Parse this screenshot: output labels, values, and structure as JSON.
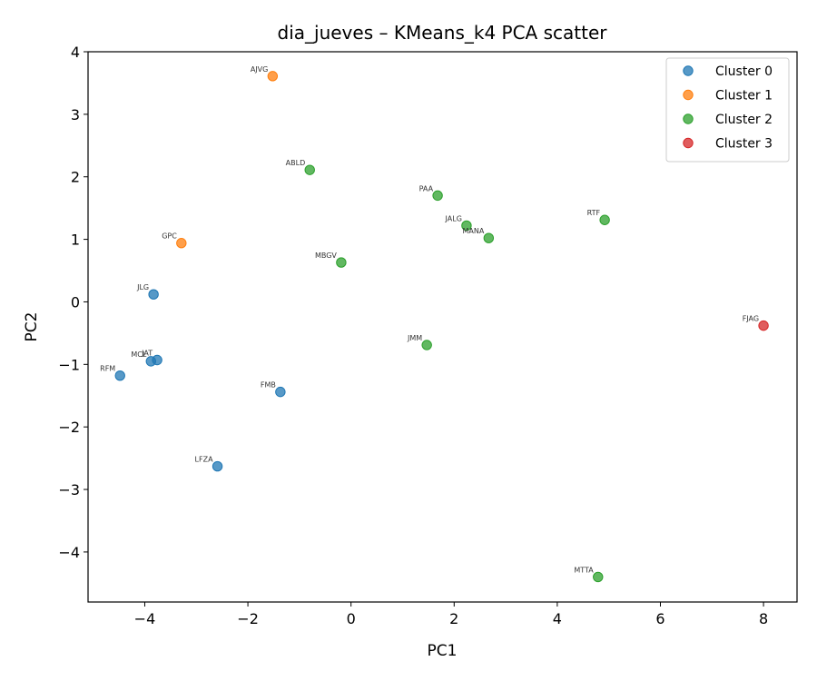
{
  "chart_data": {
    "type": "scatter",
    "title": "dia_jueves – KMeans_k4 PCA scatter",
    "xlabel": "PC1",
    "ylabel": "PC2",
    "xlim": [
      -5.1,
      8.65
    ],
    "ylim": [
      -4.8,
      4.0
    ],
    "xticks": [
      -4,
      -2,
      0,
      2,
      4,
      6,
      8
    ],
    "yticks": [
      -4,
      -3,
      -2,
      -1,
      0,
      1,
      2,
      3,
      4
    ],
    "xtick_labels": [
      "−4",
      "−2",
      "0",
      "2",
      "4",
      "6",
      "8"
    ],
    "ytick_labels": [
      "−4",
      "−3",
      "−2",
      "−1",
      "0",
      "1",
      "2",
      "3",
      "4"
    ],
    "grid": false,
    "legend_position": "top-right",
    "series": [
      {
        "name": "Cluster 0",
        "color": "#1f77b4",
        "points": [
          {
            "label": "JLG",
            "x": -3.83,
            "y": 0.12
          },
          {
            "label": "MCL",
            "x": -3.88,
            "y": -0.95
          },
          {
            "label": "JAT",
            "x": -3.76,
            "y": -0.93
          },
          {
            "label": "RFM",
            "x": -4.48,
            "y": -1.18
          },
          {
            "label": "FMB",
            "x": -1.37,
            "y": -1.44
          },
          {
            "label": "LFZA",
            "x": -2.59,
            "y": -2.63
          }
        ]
      },
      {
        "name": "Cluster 1",
        "color": "#ff7f0e",
        "points": [
          {
            "label": "AJVG",
            "x": -1.52,
            "y": 3.61
          },
          {
            "label": "GPC",
            "x": -3.29,
            "y": 0.94
          }
        ]
      },
      {
        "name": "Cluster 2",
        "color": "#2ca02c",
        "points": [
          {
            "label": "ABLD",
            "x": -0.8,
            "y": 2.11
          },
          {
            "label": "PAA",
            "x": 1.68,
            "y": 1.7
          },
          {
            "label": "JALG",
            "x": 2.24,
            "y": 1.22
          },
          {
            "label": "MANA",
            "x": 2.67,
            "y": 1.02
          },
          {
            "label": "RTF",
            "x": 4.92,
            "y": 1.31
          },
          {
            "label": "MBGV",
            "x": -0.19,
            "y": 0.63
          },
          {
            "label": "JMM",
            "x": 1.47,
            "y": -0.69
          },
          {
            "label": "MTTA",
            "x": 4.79,
            "y": -4.4
          }
        ]
      },
      {
        "name": "Cluster 3",
        "color": "#d62728",
        "points": [
          {
            "label": "FJAG",
            "x": 8.0,
            "y": -0.38
          }
        ]
      }
    ]
  }
}
